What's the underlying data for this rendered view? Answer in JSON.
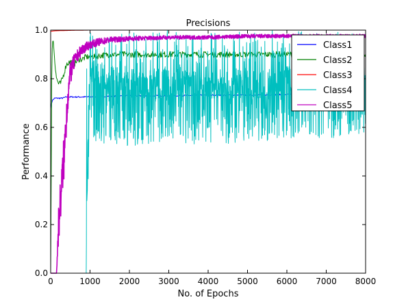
{
  "chart_data": {
    "type": "line",
    "title": "Precisions",
    "xlabel": "No. of Epochs",
    "ylabel": "Performance",
    "xlim": [
      0,
      8000
    ],
    "ylim": [
      0.0,
      1.0
    ],
    "xticks": [
      0,
      1000,
      2000,
      3000,
      4000,
      5000,
      6000,
      7000,
      8000
    ],
    "xtick_labels": [
      "0",
      "1000",
      "2000",
      "3000",
      "4000",
      "5000",
      "6000",
      "7000",
      "8000"
    ],
    "yticks": [
      0.0,
      0.2,
      0.4,
      0.6,
      0.8,
      1.0
    ],
    "ytick_labels": [
      "0.0",
      "0.2",
      "0.4",
      "0.6",
      "0.8",
      "1.0"
    ],
    "grid": false,
    "legend_position": "top-right",
    "series": [
      {
        "name": "Class1",
        "color": "#0000ff",
        "x": [
          0,
          10,
          40,
          100,
          200,
          300,
          400,
          600,
          800,
          1000,
          1500,
          2000,
          3000,
          4000,
          5000,
          6000,
          7000,
          8000
        ],
        "y": [
          0.68,
          0.69,
          0.71,
          0.72,
          0.72,
          0.72,
          0.725,
          0.725,
          0.725,
          0.725,
          0.728,
          0.73,
          0.73,
          0.732,
          0.733,
          0.735,
          0.735,
          0.735
        ]
      },
      {
        "name": "Class2",
        "color": "#008000",
        "x": [
          0,
          30,
          60,
          100,
          150,
          200,
          250,
          300,
          350,
          400,
          500,
          600,
          700,
          800,
          900,
          1000,
          1500,
          2000,
          3000,
          4000,
          5000,
          6000,
          7000,
          8000
        ],
        "y": [
          0.0,
          0.9,
          0.97,
          0.88,
          0.8,
          0.78,
          0.78,
          0.8,
          0.83,
          0.86,
          0.87,
          0.86,
          0.88,
          0.88,
          0.89,
          0.89,
          0.9,
          0.9,
          0.9,
          0.9,
          0.9,
          0.9,
          0.9,
          0.89
        ]
      },
      {
        "name": "Class3",
        "color": "#ff0000",
        "x": [
          0,
          100,
          300,
          600,
          1000,
          2000,
          4000,
          6000,
          8000
        ],
        "y": [
          0.995,
          0.997,
          0.998,
          0.999,
          1.0,
          1.0,
          1.0,
          1.0,
          1.0
        ]
      },
      {
        "name": "Class4",
        "color": "#00bfbf",
        "x": [
          0,
          900,
          950,
          980,
          1000,
          1100,
          1300,
          1600,
          2000,
          2500,
          3000,
          3500,
          4000,
          4500,
          5000,
          5500,
          6000,
          6500,
          7000,
          7500,
          8000
        ],
        "y": [
          0.0,
          0.0,
          0.6,
          0.75,
          0.85,
          0.82,
          0.8,
          0.79,
          0.78,
          0.78,
          0.79,
          0.78,
          0.78,
          0.78,
          0.78,
          0.78,
          0.79,
          0.8,
          0.78,
          0.78,
          0.8
        ],
        "spread": [
          0.0,
          0.0,
          0.3,
          0.3,
          0.3,
          0.28,
          0.27,
          0.26,
          0.26,
          0.26,
          0.26,
          0.25,
          0.25,
          0.25,
          0.24,
          0.24,
          0.24,
          0.23,
          0.23,
          0.22,
          0.22
        ]
      },
      {
        "name": "Class5",
        "color": "#bf00bf",
        "x": [
          0,
          150,
          200,
          250,
          300,
          350,
          400,
          450,
          500,
          600,
          700,
          800,
          1000,
          1200,
          1500,
          2000,
          3000,
          4000,
          5000,
          6000,
          7000,
          8000
        ],
        "y": [
          0.0,
          0.0,
          0.2,
          0.3,
          0.4,
          0.5,
          0.65,
          0.75,
          0.82,
          0.87,
          0.9,
          0.92,
          0.94,
          0.95,
          0.96,
          0.965,
          0.97,
          0.97,
          0.975,
          0.975,
          0.975,
          0.975
        ],
        "spread": [
          0.0,
          0.0,
          0.1,
          0.12,
          0.12,
          0.12,
          0.1,
          0.08,
          0.06,
          0.04,
          0.03,
          0.03,
          0.02,
          0.02,
          0.015,
          0.012,
          0.01,
          0.01,
          0.01,
          0.01,
          0.01,
          0.01
        ]
      }
    ]
  }
}
